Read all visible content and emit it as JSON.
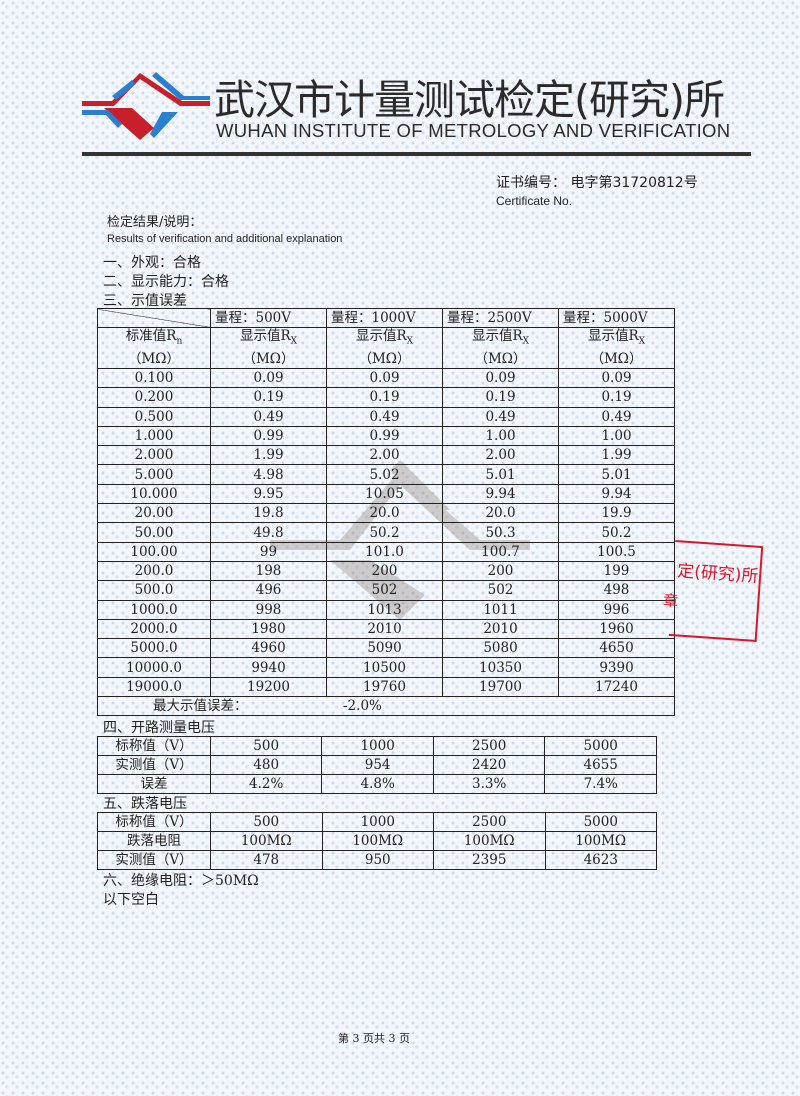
{
  "header": {
    "title_cn": "武汉市计量测试检定(研究)所",
    "title_en": "WUHAN INSTITUTE OF METROLOGY AND VERIFICATION",
    "certificate_label_cn": "证书编号：",
    "certificate_number": "电字第31720812号",
    "certificate_label_en": "Certificate No.",
    "results_label_cn": "检定结果/说明：",
    "results_label_en": "Results of verification and additional explanation"
  },
  "sections": {
    "appearance": "一、外观：合格",
    "display": "二、显示能力：合格",
    "indication_error": "三、示值误差",
    "open_voltage": "四、开路测量电压",
    "drop_voltage": "五、跌落电压",
    "insulation": "六、绝缘电阻：＞50MΩ",
    "blank": "以下空白"
  },
  "indication_table": {
    "ranges": [
      "量程：500V",
      "量程：1000V",
      "量程：2500V",
      "量程：5000V"
    ],
    "std_header": "标准值R",
    "std_sub": "n",
    "disp_header": "显示值R",
    "disp_sub": "X",
    "unit": "（MΩ）",
    "rows": [
      [
        "0.100",
        "0.09",
        "0.09",
        "0.09",
        "0.09"
      ],
      [
        "0.200",
        "0.19",
        "0.19",
        "0.19",
        "0.19"
      ],
      [
        "0.500",
        "0.49",
        "0.49",
        "0.49",
        "0.49"
      ],
      [
        "1.000",
        "0.99",
        "0.99",
        "1.00",
        "1.00"
      ],
      [
        "2.000",
        "1.99",
        "2.00",
        "2.00",
        "1.99"
      ],
      [
        "5.000",
        "4.98",
        "5.02",
        "5.01",
        "5.01"
      ],
      [
        "10.000",
        "9.95",
        "10.05",
        "9.94",
        "9.94"
      ],
      [
        "20.00",
        "19.8",
        "20.0",
        "20.0",
        "19.9"
      ],
      [
        "50.00",
        "49.8",
        "50.2",
        "50.3",
        "50.2"
      ],
      [
        "100.00",
        "99",
        "101.0",
        "100.7",
        "100.5"
      ],
      [
        "200.0",
        "198",
        "200",
        "200",
        "199"
      ],
      [
        "500.0",
        "496",
        "502",
        "502",
        "498"
      ],
      [
        "1000.0",
        "998",
        "1013",
        "1011",
        "996"
      ],
      [
        "2000.0",
        "1980",
        "2010",
        "2010",
        "1960"
      ],
      [
        "5000.0",
        "4960",
        "5090",
        "5080",
        "4650"
      ],
      [
        "10000.0",
        "9940",
        "10500",
        "10350",
        "9390"
      ],
      [
        "19000.0",
        "19200",
        "19760",
        "19700",
        "17240"
      ]
    ],
    "max_error_label": "最大示值误差：",
    "max_error_value": "-2.0%"
  },
  "open_voltage_table": {
    "rows": [
      [
        "标称值（V）",
        "500",
        "1000",
        "2500",
        "5000"
      ],
      [
        "实测值（V）",
        "480",
        "954",
        "2420",
        "4655"
      ],
      [
        "误差",
        "4.2%",
        "4.8%",
        "3.3%",
        "7.4%"
      ]
    ]
  },
  "drop_voltage_table": {
    "rows": [
      [
        "标称值（V）",
        "500",
        "1000",
        "2500",
        "5000"
      ],
      [
        "跌落电阻",
        "100MΩ",
        "100MΩ",
        "100MΩ",
        "100MΩ"
      ],
      [
        "实测值（V）",
        "478",
        "950",
        "2395",
        "4623"
      ]
    ]
  },
  "stamp": {
    "line1": "定(研究)所",
    "line2": "章"
  },
  "footer": {
    "page": "第 3 页共 3 页"
  },
  "colors": {
    "logo_red": "#c8202a",
    "logo_blue": "#2a7fd0",
    "stamp_red": "#d9162c"
  }
}
